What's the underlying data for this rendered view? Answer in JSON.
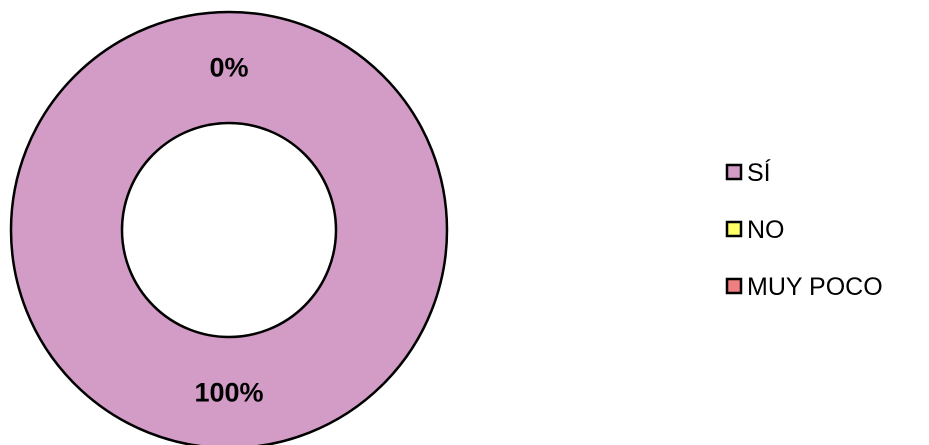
{
  "chart_data": {
    "type": "pie",
    "variant": "doughnut",
    "categories": [
      "SÍ",
      "NO",
      "MUY POCO"
    ],
    "values": [
      100,
      0,
      0
    ],
    "data_labels": [
      "100%",
      "0%",
      ""
    ],
    "colors": [
      "#d39cc7",
      "#ffff66",
      "#f08080"
    ],
    "legend_position": "right",
    "title": ""
  }
}
